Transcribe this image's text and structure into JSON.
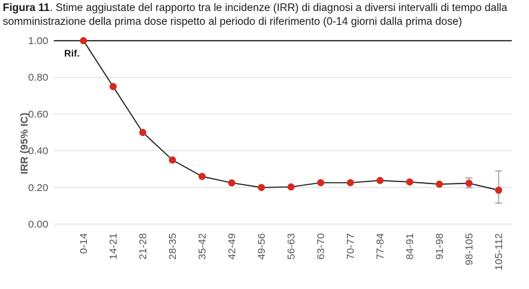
{
  "caption": {
    "lead": "Figura 11",
    "text": ". Stime aggiustate del rapporto tra le incidenze (IRR) di diagnosi a diversi intervalli di tempo dalla somministrazione della prima dose rispetto al periodo di riferimento (0-14 giorni dalla prima dose)"
  },
  "chart_data": {
    "type": "line",
    "ylabel": "IRR (95% IC)",
    "xlabel": "",
    "ylim": [
      0,
      1
    ],
    "yticks": [
      "0.00",
      "0.20",
      "0.40",
      "0.60",
      "0.80",
      "1.00"
    ],
    "categories": [
      "0-14",
      "14-21",
      "21-28",
      "28-35",
      "35-42",
      "42-49",
      "49-56",
      "56-63",
      "63-70",
      "70-77",
      "77-84",
      "84-91",
      "91-98",
      "98-105",
      "105-112"
    ],
    "values": [
      1.0,
      0.75,
      0.5,
      0.35,
      0.26,
      0.225,
      0.2,
      0.203,
      0.226,
      0.226,
      0.238,
      0.23,
      0.218,
      0.223,
      0.185
    ],
    "ci_lower": [
      null,
      null,
      null,
      null,
      null,
      null,
      null,
      null,
      null,
      null,
      null,
      null,
      null,
      0.198,
      0.115
    ],
    "ci_upper": [
      null,
      null,
      null,
      null,
      null,
      null,
      null,
      null,
      null,
      null,
      null,
      null,
      null,
      0.252,
      0.29
    ],
    "reference_line": 1.0,
    "annotation": "Rif.",
    "grid": "horizontal",
    "legend": "none",
    "colors": {
      "marker": "#d42a22",
      "line": "#1a1a1a",
      "grid": "#d9d9d9",
      "errorbar": "#888888"
    }
  }
}
